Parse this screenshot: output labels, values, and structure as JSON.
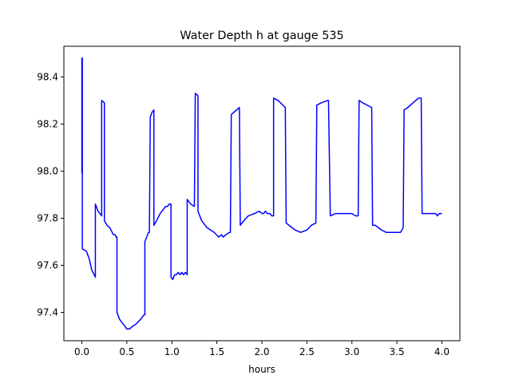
{
  "chart_data": {
    "type": "line",
    "title": "Water Depth h at gauge 535",
    "xlabel": "hours",
    "ylabel": "",
    "xlim": [
      -0.2,
      4.2
    ],
    "ylim": [
      97.28,
      98.53
    ],
    "xticks": [
      0.0,
      0.5,
      1.0,
      1.5,
      2.0,
      2.5,
      3.0,
      3.5,
      4.0
    ],
    "xtick_labels": [
      "0.0",
      "0.5",
      "1.0",
      "1.5",
      "2.0",
      "2.5",
      "3.0",
      "3.5",
      "4.0"
    ],
    "yticks": [
      97.4,
      97.6,
      97.8,
      98.0,
      98.2,
      98.4
    ],
    "ytick_labels": [
      "97.4",
      "97.6",
      "97.8",
      "98.0",
      "98.2",
      "98.4"
    ],
    "grid": false,
    "line_color": "#0000ff",
    "series": [
      {
        "x": [
          0.0,
          0.0,
          0.005,
          0.005,
          0.05,
          0.08,
          0.11,
          0.15,
          0.15,
          0.18,
          0.22,
          0.22,
          0.25,
          0.25,
          0.28,
          0.31,
          0.35,
          0.37,
          0.38,
          0.39,
          0.39,
          0.42,
          0.46,
          0.5,
          0.53,
          0.56,
          0.6,
          0.65,
          0.69,
          0.7,
          0.7,
          0.74,
          0.75,
          0.76,
          0.78,
          0.8,
          0.8,
          0.83,
          0.87,
          0.89,
          0.91,
          0.93,
          0.95,
          0.97,
          0.98,
          0.99,
          0.99,
          1.01,
          1.02,
          1.03,
          1.05,
          1.07,
          1.09,
          1.11,
          1.13,
          1.15,
          1.17,
          1.17,
          1.21,
          1.25,
          1.26,
          1.29,
          1.29,
          1.33,
          1.39,
          1.47,
          1.52,
          1.55,
          1.57,
          1.6,
          1.64,
          1.65,
          1.66,
          1.75,
          1.76,
          1.8,
          1.85,
          1.92,
          1.97,
          2.0,
          2.02,
          2.04,
          2.06,
          2.09,
          2.11,
          2.13,
          2.13,
          2.18,
          2.26,
          2.27,
          2.3,
          2.37,
          2.43,
          2.5,
          2.55,
          2.6,
          2.61,
          2.66,
          2.73,
          2.74,
          2.76,
          2.82,
          2.86,
          2.9,
          2.95,
          3.0,
          3.04,
          3.07,
          3.08,
          3.12,
          3.22,
          3.23,
          3.26,
          3.33,
          3.38,
          3.44,
          3.5,
          3.54,
          3.57,
          3.58,
          3.62,
          3.68,
          3.74,
          3.77,
          3.78,
          3.83,
          3.87,
          3.9,
          3.93,
          3.95,
          3.97,
          3.98,
          4.0
        ],
        "y": [
          97.99,
          98.48,
          98.48,
          97.67,
          97.66,
          97.63,
          97.58,
          97.55,
          97.86,
          97.83,
          97.81,
          98.3,
          98.29,
          97.79,
          97.77,
          97.76,
          97.73,
          97.73,
          97.72,
          97.72,
          97.4,
          97.37,
          97.35,
          97.33,
          97.33,
          97.34,
          97.35,
          97.37,
          97.39,
          97.39,
          97.7,
          97.74,
          97.74,
          98.23,
          98.25,
          98.26,
          97.77,
          97.79,
          97.82,
          97.83,
          97.84,
          97.85,
          97.85,
          97.86,
          97.86,
          97.86,
          97.55,
          97.54,
          97.55,
          97.56,
          97.56,
          97.57,
          97.56,
          97.57,
          97.56,
          97.57,
          97.56,
          97.88,
          97.86,
          97.85,
          98.33,
          98.32,
          97.83,
          97.79,
          97.76,
          97.74,
          97.72,
          97.73,
          97.72,
          97.73,
          97.74,
          97.74,
          98.24,
          98.27,
          97.77,
          97.79,
          97.81,
          97.82,
          97.83,
          97.82,
          97.82,
          97.83,
          97.82,
          97.82,
          97.81,
          97.81,
          98.31,
          98.3,
          98.27,
          97.78,
          97.77,
          97.75,
          97.74,
          97.75,
          97.77,
          97.78,
          98.28,
          98.29,
          98.3,
          98.3,
          97.81,
          97.82,
          97.82,
          97.82,
          97.82,
          97.82,
          97.81,
          97.81,
          98.3,
          98.29,
          98.27,
          97.77,
          97.77,
          97.75,
          97.74,
          97.74,
          97.74,
          97.74,
          97.76,
          98.26,
          98.27,
          98.29,
          98.31,
          98.31,
          97.82,
          97.82,
          97.82,
          97.82,
          97.82,
          97.81,
          97.82,
          97.82,
          97.82
        ]
      }
    ]
  }
}
